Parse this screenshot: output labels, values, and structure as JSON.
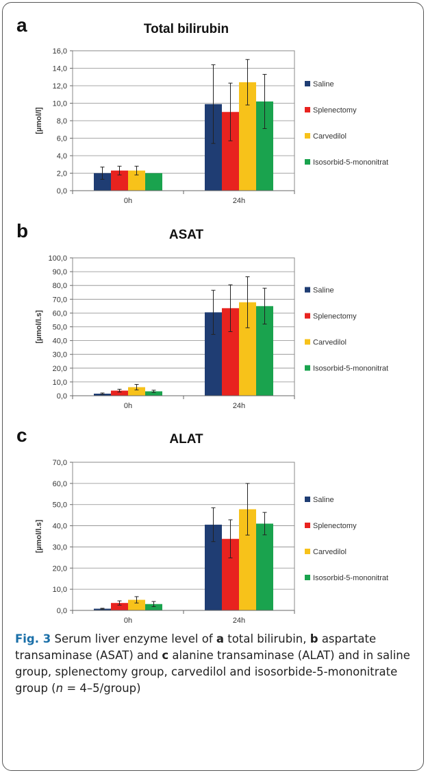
{
  "panels": [
    {
      "letter": "a",
      "chart_data": {
        "type": "bar",
        "title": "Total bilirubin",
        "ylabel": "[µmol/l]",
        "xlabel": "",
        "categories": [
          "0h",
          "24h"
        ],
        "ylim": [
          0,
          16
        ],
        "yticks": [
          "0,0",
          "2,0",
          "4,0",
          "6,0",
          "8,0",
          "10,0",
          "12,0",
          "14,0",
          "16,0"
        ],
        "ytick_values": [
          0,
          2,
          4,
          6,
          8,
          10,
          12,
          14,
          16
        ],
        "grid": true,
        "legend": "right",
        "series": [
          {
            "name": "Saline",
            "color": "#1f3d73",
            "values": [
              2.0,
              9.9
            ],
            "errors": [
              0.7,
              4.5
            ]
          },
          {
            "name": "Splenectomy",
            "color": "#e8231f",
            "values": [
              2.3,
              9.0
            ],
            "errors": [
              0.5,
              3.3
            ]
          },
          {
            "name": "Carvedilol",
            "color": "#f7c21a",
            "values": [
              2.3,
              12.4
            ],
            "errors": [
              0.5,
              2.6
            ]
          },
          {
            "name": "Isosorbid-5-mononitrat",
            "color": "#1aa34e",
            "values": [
              2.0,
              10.2
            ],
            "errors": [
              0.0,
              3.1
            ]
          }
        ]
      }
    },
    {
      "letter": "b",
      "chart_data": {
        "type": "bar",
        "title": "ASAT",
        "ylabel": "[µmol/l.s]",
        "xlabel": "",
        "categories": [
          "0h",
          "24h"
        ],
        "ylim": [
          0,
          100
        ],
        "yticks": [
          "0,0",
          "10,0",
          "20,0",
          "30,0",
          "40,0",
          "50,0",
          "60,0",
          "70,0",
          "80,0",
          "90,0",
          "100,0"
        ],
        "ytick_values": [
          0,
          10,
          20,
          30,
          40,
          50,
          60,
          70,
          80,
          90,
          100
        ],
        "grid": true,
        "legend": "right",
        "series": [
          {
            "name": "Saline",
            "color": "#1f3d73",
            "values": [
              1.5,
              60.5
            ],
            "errors": [
              0.5,
              16.0
            ]
          },
          {
            "name": "Splenectomy",
            "color": "#e8231f",
            "values": [
              3.7,
              63.5
            ],
            "errors": [
              1.0,
              17.0
            ]
          },
          {
            "name": "Carvedilol",
            "color": "#f7c21a",
            "values": [
              6.2,
              67.8
            ],
            "errors": [
              2.0,
              18.5
            ]
          },
          {
            "name": "Isosorbid-5-mononitrat",
            "color": "#1aa34e",
            "values": [
              3.2,
              65.0
            ],
            "errors": [
              0.8,
              13.0
            ]
          }
        ]
      }
    },
    {
      "letter": "c",
      "chart_data": {
        "type": "bar",
        "title": "ALAT",
        "ylabel": "[µmol/l.s]",
        "xlabel": "",
        "categories": [
          "0h",
          "24h"
        ],
        "ylim": [
          0,
          70
        ],
        "yticks": [
          "0,0",
          "10,0",
          "20,0",
          "30,0",
          "40,0",
          "50,0",
          "60,0",
          "70,0"
        ],
        "ytick_values": [
          0,
          10,
          20,
          30,
          40,
          50,
          60,
          70
        ],
        "grid": true,
        "legend": "right",
        "series": [
          {
            "name": "Saline",
            "color": "#1f3d73",
            "values": [
              0.8,
              40.5
            ],
            "errors": [
              0.2,
              8.0
            ]
          },
          {
            "name": "Splenectomy",
            "color": "#e8231f",
            "values": [
              3.5,
              33.8
            ],
            "errors": [
              1.0,
              9.0
            ]
          },
          {
            "name": "Carvedilol",
            "color": "#f7c21a",
            "values": [
              5.0,
              47.8
            ],
            "errors": [
              1.5,
              12.2
            ]
          },
          {
            "name": "Isosorbid-5-mononitrat",
            "color": "#1aa34e",
            "values": [
              3.0,
              41.0
            ],
            "errors": [
              1.2,
              5.3
            ]
          }
        ]
      }
    }
  ],
  "caption": {
    "fig_label": "Fig. 3",
    "segments": [
      {
        "text": " Serum liver enzyme level of ",
        "bold": false
      },
      {
        "text": "a",
        "bold": true
      },
      {
        "text": " total bilirubin, ",
        "bold": false
      },
      {
        "text": "b",
        "bold": true
      },
      {
        "text": " aspartate transaminase (ASAT) and ",
        "bold": false
      },
      {
        "text": "c",
        "bold": true
      },
      {
        "text": " alanine transaminase (ALAT) and in saline group, splenectomy group, carvedilol and isosorbide-5-mononitrate group (",
        "bold": false
      },
      {
        "text": "n",
        "italic": true
      },
      {
        "text": " = 4–5/group)",
        "bold": false
      }
    ]
  }
}
